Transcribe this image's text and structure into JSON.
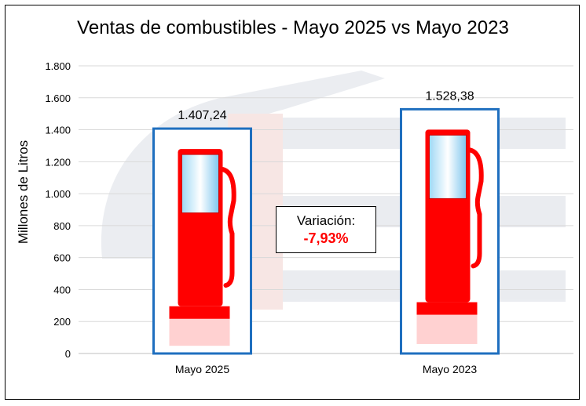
{
  "chart_data": {
    "type": "bar",
    "title": "Ventas de combustibles - Mayo 2025 vs Mayo 2023",
    "ylabel": "Millones de Litros",
    "xlabel": "",
    "categories": [
      "Mayo 2025",
      "Mayo 2023"
    ],
    "values": [
      1407.24,
      1528.38
    ],
    "value_labels": [
      "1.407,24",
      "1.528,38"
    ],
    "ylim": [
      0,
      1800
    ],
    "yticks": [
      0,
      200,
      400,
      600,
      800,
      1000,
      1200,
      1400,
      1600,
      1800
    ],
    "ytick_labels": [
      "0",
      "200",
      "400",
      "600",
      "800",
      "1.000",
      "1.200",
      "1.400",
      "1.600",
      "1.800"
    ],
    "grid": true,
    "legend": "none",
    "annotation": {
      "label": "Variación:",
      "value": "-7,93%"
    },
    "colors": {
      "bar_border": "#1f6fbf",
      "pump": "#ff0000",
      "annotation_value": "#ff0000",
      "grid": "#d9d9d9"
    }
  }
}
